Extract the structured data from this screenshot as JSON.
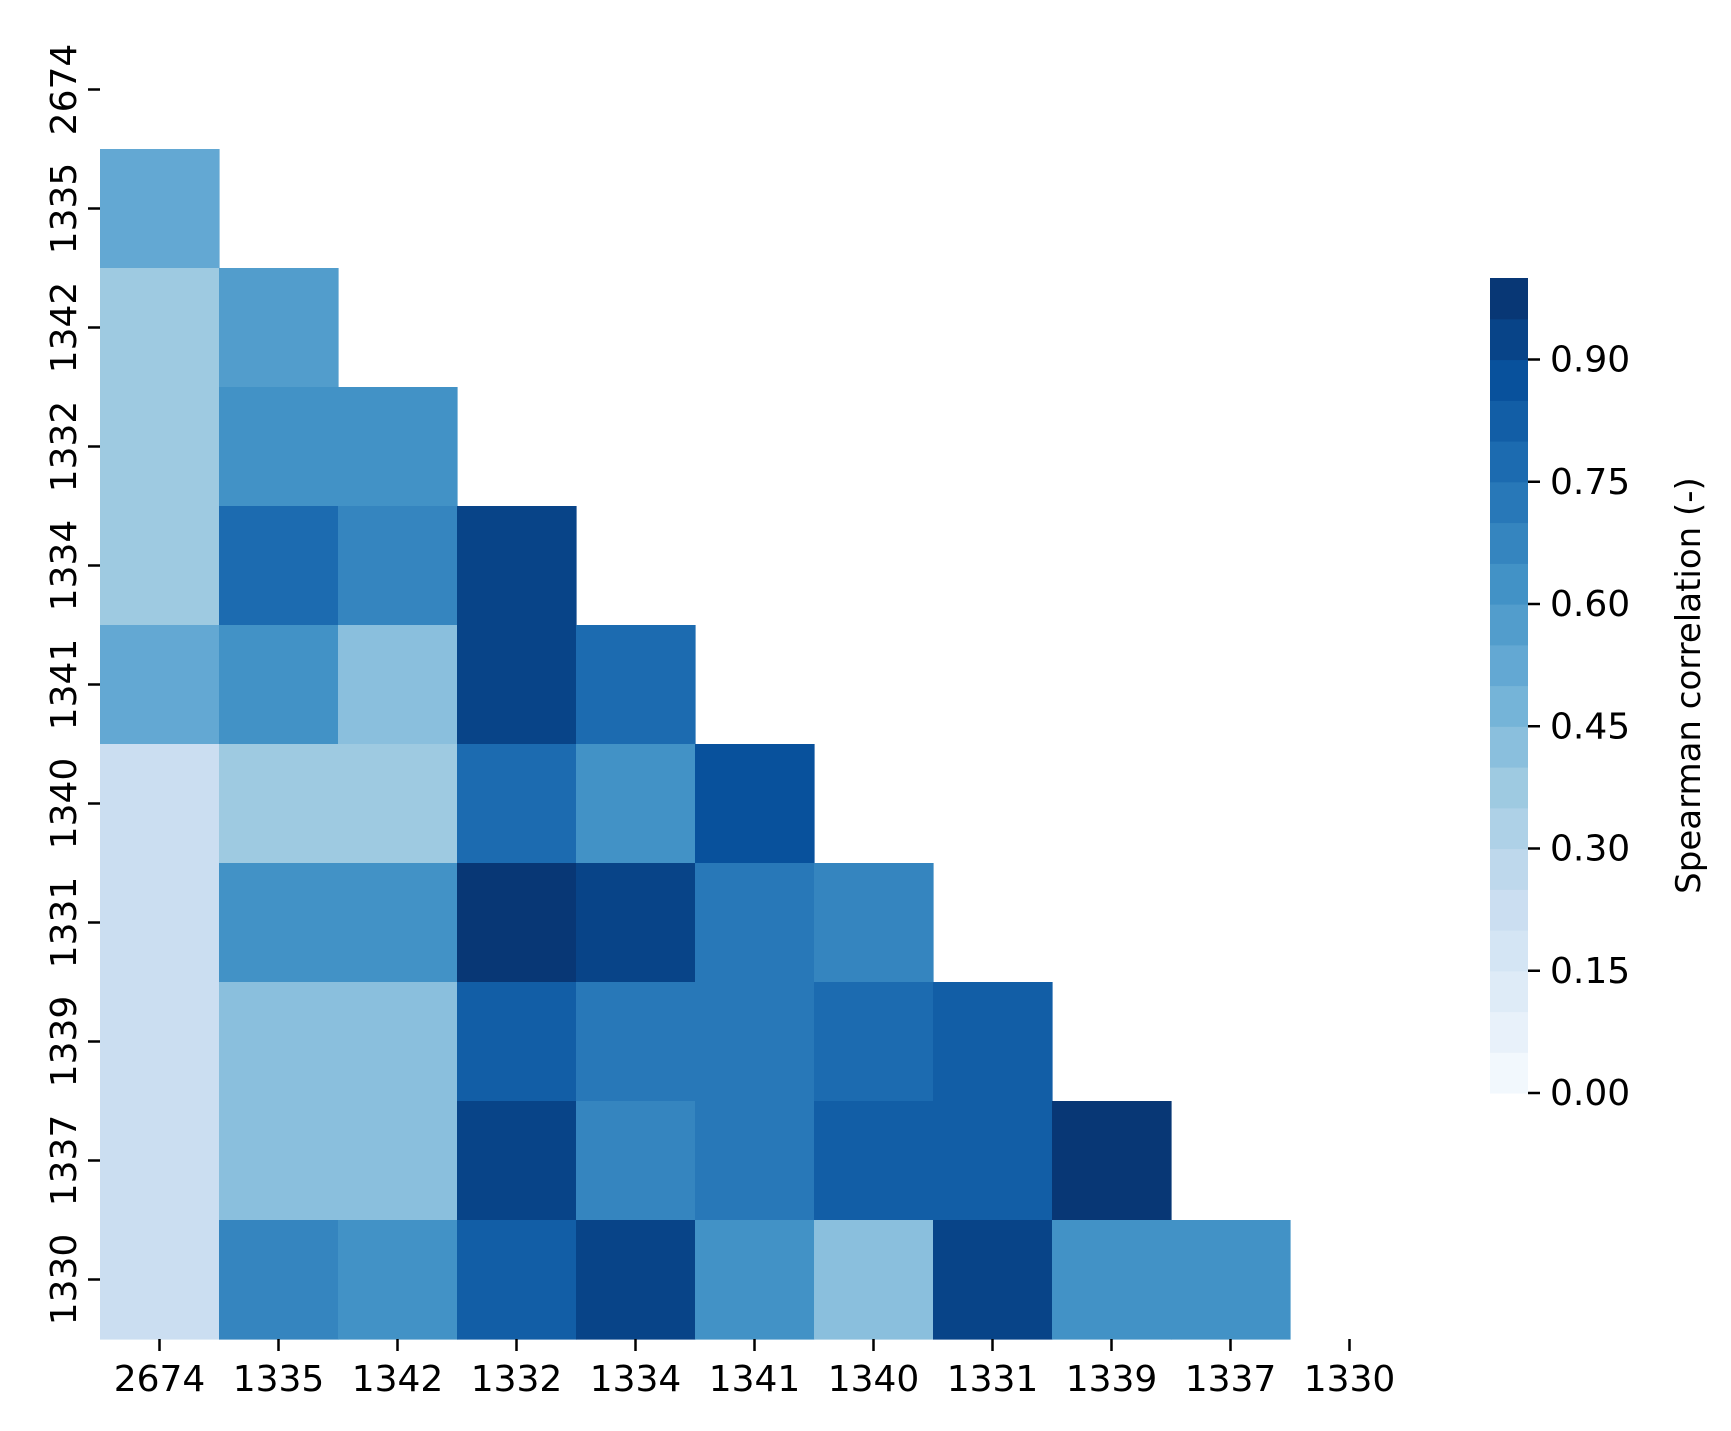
{
  "chart_data": {
    "type": "heatmap",
    "title": "",
    "xlabel": "",
    "ylabel": "",
    "labels": [
      "2674",
      "1335",
      "1342",
      "1332",
      "1334",
      "1341",
      "1340",
      "1331",
      "1339",
      "1337",
      "1330"
    ],
    "mask": "upper-triangle-including-diagonal",
    "values": [
      [
        null,
        null,
        null,
        null,
        null,
        null,
        null,
        null,
        null,
        null,
        null
      ],
      [
        0.52,
        null,
        null,
        null,
        null,
        null,
        null,
        null,
        null,
        null,
        null
      ],
      [
        0.36,
        0.55,
        null,
        null,
        null,
        null,
        null,
        null,
        null,
        null,
        null
      ],
      [
        0.36,
        0.62,
        0.6,
        null,
        null,
        null,
        null,
        null,
        null,
        null,
        null
      ],
      [
        0.36,
        0.75,
        0.68,
        0.9,
        null,
        null,
        null,
        null,
        null,
        null,
        null
      ],
      [
        0.52,
        0.62,
        0.42,
        0.9,
        0.78,
        null,
        null,
        null,
        null,
        null,
        null
      ],
      [
        0.24,
        0.39,
        0.39,
        0.78,
        0.6,
        0.85,
        null,
        null,
        null,
        null,
        null
      ],
      [
        0.24,
        0.62,
        0.62,
        0.96,
        0.9,
        0.72,
        0.68,
        null,
        null,
        null,
        null
      ],
      [
        0.24,
        0.42,
        0.42,
        0.84,
        0.72,
        0.72,
        0.75,
        0.84,
        null,
        null,
        null
      ],
      [
        0.24,
        0.42,
        0.42,
        0.9,
        0.68,
        0.72,
        0.84,
        0.84,
        0.99,
        null,
        null
      ],
      [
        0.24,
        0.68,
        0.62,
        0.84,
        0.9,
        0.6,
        0.42,
        0.93,
        0.62,
        0.62,
        null
      ]
    ],
    "colormap": "Blues",
    "colorbar": {
      "label": "Spearman correlation (-)",
      "vmin": 0.0,
      "vmax": 1.0,
      "levels": 20,
      "ticks": [
        "0.00",
        "0.15",
        "0.30",
        "0.45",
        "0.60",
        "0.75",
        "0.90"
      ],
      "tick_values": [
        0.0,
        0.15,
        0.3,
        0.45,
        0.6,
        0.75,
        0.9
      ]
    },
    "grid": false,
    "legend": "colorbar-right"
  }
}
